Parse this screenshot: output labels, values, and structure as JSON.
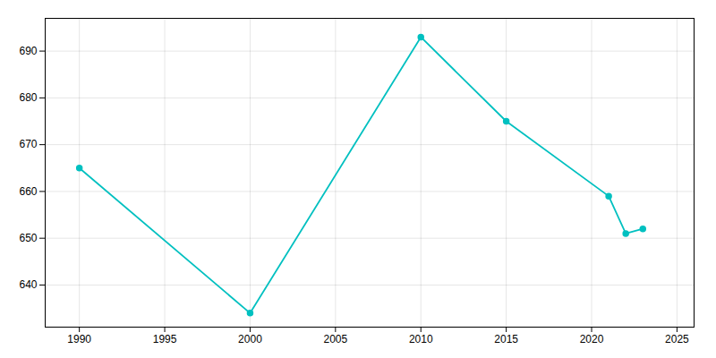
{
  "chart_data": {
    "type": "line",
    "x": [
      1990,
      2000,
      2010,
      2015,
      2021,
      2022,
      2023
    ],
    "values": [
      665,
      634,
      693,
      675,
      659,
      651,
      652
    ],
    "color": "#00C0C0",
    "marker": "circle",
    "xlim": [
      1988,
      2026
    ],
    "ylim": [
      631,
      697
    ],
    "xticks": [
      1990,
      1995,
      2000,
      2005,
      2010,
      2015,
      2020,
      2025
    ],
    "yticks": [
      640,
      650,
      660,
      670,
      680,
      690
    ],
    "grid": true
  }
}
